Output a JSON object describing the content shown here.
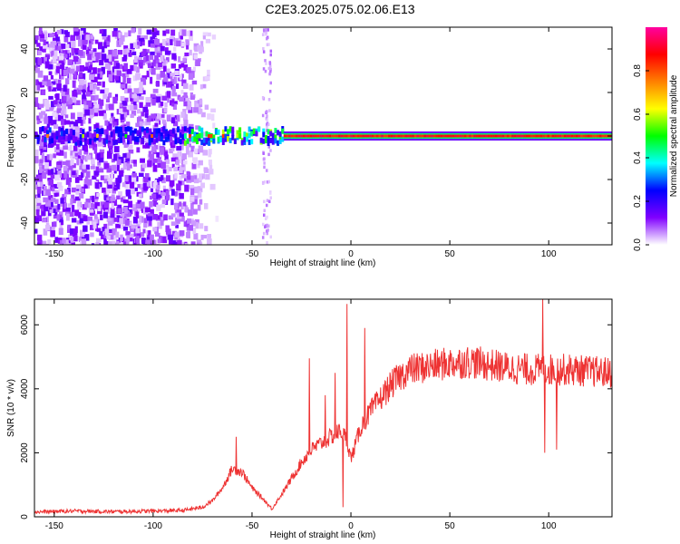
{
  "title": "C2E3.2025.075.02.06.E13",
  "chart_data": [
    {
      "type": "heatmap",
      "xlabel": "Height of straight line (km)",
      "ylabel": "Frequency (Hz)",
      "xlim": [
        -160,
        132
      ],
      "ylim": [
        -50,
        50
      ],
      "xticks": [
        -150,
        -100,
        -50,
        0,
        50,
        100
      ],
      "yticks": [
        -40,
        -20,
        0,
        20,
        40
      ],
      "colorbar": {
        "label": "Normalized spectral amplitude",
        "range": [
          0,
          1
        ],
        "ticks": [
          "0.0",
          "0.2",
          "0.4",
          "0.6",
          "0.8"
        ],
        "colors": [
          "#ffffff",
          "#8000ff",
          "#0000ff",
          "#00ffff",
          "#00ff00",
          "#ffff00",
          "#ff8000",
          "#ff0000",
          "#ff00a0"
        ]
      },
      "features": {
        "noise_region_x": [
          -160,
          -75
        ],
        "spike_x": -43,
        "carrier_frequency_hz": 0,
        "carrier_strong_from_x": -35
      }
    },
    {
      "type": "line",
      "xlabel": "Height of straight line (km)",
      "ylabel": "SNR (10 * v/v)",
      "xlim": [
        -160,
        132
      ],
      "ylim": [
        0,
        6800
      ],
      "xticks": [
        -150,
        -100,
        -50,
        0,
        50,
        100
      ],
      "yticks": [
        0,
        2000,
        4000,
        6000
      ],
      "series_color": "#ee3333",
      "trend": {
        "x": [
          -160,
          -140,
          -120,
          -100,
          -85,
          -75,
          -70,
          -65,
          -60,
          -55,
          -50,
          -45,
          -40,
          -35,
          -30,
          -25,
          -20,
          -15,
          -10,
          -5,
          -2,
          0,
          2,
          5,
          10,
          15,
          20,
          25,
          30,
          40,
          50,
          60,
          70,
          80,
          90,
          100,
          110,
          120,
          132
        ],
        "values": [
          150,
          180,
          160,
          180,
          200,
          300,
          500,
          900,
          1500,
          1400,
          900,
          600,
          250,
          700,
          1200,
          1700,
          2100,
          2300,
          2500,
          2700,
          2400,
          1800,
          2200,
          2800,
          3300,
          3700,
          4100,
          4400,
          4600,
          4700,
          4800,
          4850,
          4750,
          4650,
          4600,
          4600,
          4600,
          4550,
          4500
        ]
      },
      "spikes": [
        {
          "x": -58,
          "value": 2500
        },
        {
          "x": -21,
          "value": 4950
        },
        {
          "x": -13,
          "value": 3800
        },
        {
          "x": -8,
          "value": 4500
        },
        {
          "x": -4,
          "value": 300
        },
        {
          "x": -2,
          "value": 6650
        },
        {
          "x": 7,
          "value": 5900
        },
        {
          "x": 97,
          "value": 6800
        },
        {
          "x": 98,
          "value": 2000
        },
        {
          "x": 104,
          "value": 2100
        }
      ]
    }
  ]
}
